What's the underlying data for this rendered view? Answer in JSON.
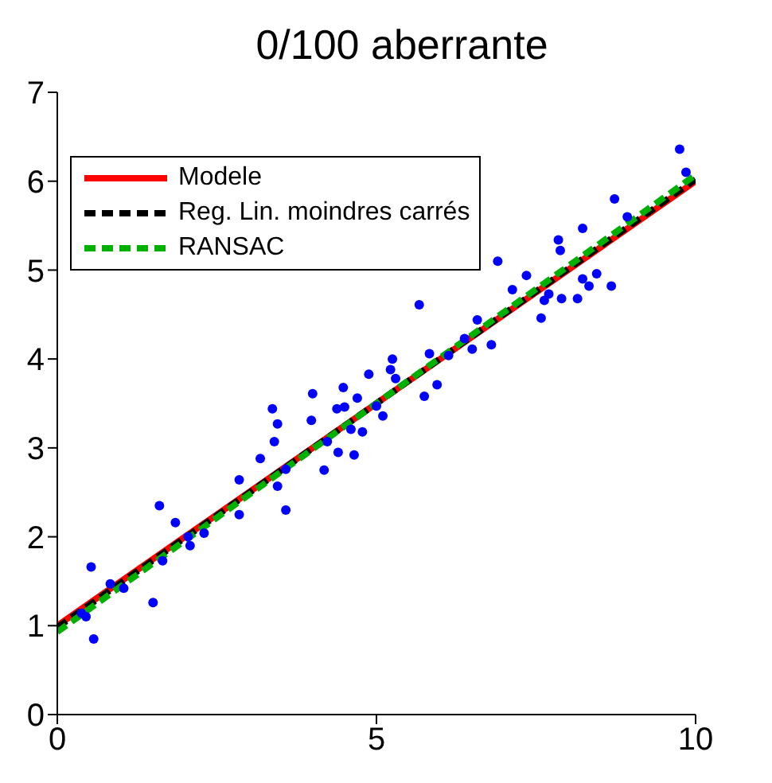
{
  "chart_data": {
    "type": "scatter",
    "title": "0/100 aberrante",
    "xlim": [
      0,
      10
    ],
    "xticks": [
      0,
      5,
      10
    ],
    "ylim": [
      0,
      7
    ],
    "yticks": [
      0,
      1,
      2,
      3,
      4,
      5,
      6,
      7
    ],
    "grid": false,
    "legend": "top left",
    "series": [
      {
        "color": "#0000ff",
        "marker": "circle",
        "x": [
          0.53,
          0.57,
          0.45,
          0.38,
          0.83,
          1.04,
          1.5,
          1.6,
          1.85,
          2.05,
          2.08,
          1.65,
          2.3,
          2.85,
          2.85,
          3.18,
          3.37,
          3.45,
          3.4,
          3.45,
          3.58,
          3.58,
          4.0,
          3.98,
          4.18,
          4.23,
          4.4,
          4.38,
          4.48,
          4.5,
          4.6,
          4.65,
          4.7,
          4.78,
          4.88,
          5.0,
          5.1,
          5.25,
          5.22,
          5.3,
          5.67,
          5.83,
          5.95,
          5.75,
          6.13,
          6.38,
          6.5,
          6.58,
          6.8,
          6.9,
          7.13,
          7.35,
          7.58,
          7.63,
          7.7,
          7.9,
          7.85,
          7.88,
          8.15,
          8.23,
          8.33,
          8.45,
          8.68,
          8.23,
          8.73,
          8.93,
          9.75,
          9.85
        ],
        "values": [
          1.66,
          0.85,
          1.1,
          1.14,
          1.47,
          1.42,
          1.26,
          2.35,
          2.16,
          2.0,
          1.9,
          1.73,
          2.04,
          2.64,
          2.25,
          2.88,
          3.44,
          3.27,
          3.07,
          2.57,
          2.3,
          2.76,
          3.61,
          3.31,
          2.75,
          3.07,
          2.95,
          3.44,
          3.68,
          3.46,
          3.21,
          2.92,
          3.56,
          3.18,
          3.83,
          3.47,
          3.36,
          4.0,
          3.88,
          3.78,
          4.61,
          4.06,
          3.71,
          3.58,
          4.04,
          4.23,
          4.11,
          4.44,
          4.16,
          5.1,
          4.78,
          4.94,
          4.46,
          4.66,
          4.73,
          4.68,
          5.34,
          5.22,
          4.68,
          4.9,
          4.82,
          4.96,
          4.82,
          5.47,
          5.8,
          5.6,
          6.36,
          6.1
        ]
      },
      {
        "type": "line",
        "name": "Modele",
        "color": "#ff0000",
        "line_style": "solid",
        "x": [
          0,
          10
        ],
        "values": [
          1.0,
          6.0
        ]
      },
      {
        "type": "line",
        "name": "Reg. Lin. moindres carrés",
        "color": "#000000",
        "line_style": "dashed",
        "x": [
          0,
          10
        ],
        "values": [
          0.98,
          6.02
        ]
      },
      {
        "type": "line",
        "name": "RANSAC",
        "color": "#00b000",
        "line_style": "dashed",
        "x": [
          0,
          10
        ],
        "values": [
          0.93,
          6.07
        ]
      }
    ]
  }
}
